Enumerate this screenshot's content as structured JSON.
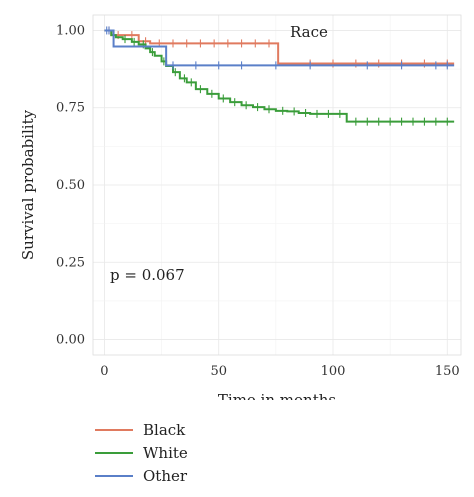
{
  "chart_data": {
    "type": "line",
    "title": "",
    "xlabel": "Time in months",
    "ylabel": "Survival probability",
    "xlim": [
      -5,
      156
    ],
    "ylim": [
      -0.05,
      1.05
    ],
    "x_ticks": [
      0,
      50,
      100,
      150
    ],
    "y_ticks": [
      0.0,
      0.25,
      0.5,
      0.75,
      1.0
    ],
    "y_tick_labels": [
      "0.00",
      "0.25",
      "0.50",
      "0.75",
      "1.00"
    ],
    "grid": true,
    "legend_title": "Race",
    "legend_position": "bottom",
    "annotation": "p = 0.067",
    "series": [
      {
        "name": "Black",
        "color": "#e07a5f",
        "x": [
          0,
          3,
          15,
          20,
          76,
          153
        ],
        "y": [
          1.0,
          0.985,
          0.965,
          0.958,
          0.893,
          0.893
        ],
        "censor_x": [
          2,
          6,
          12,
          18,
          24,
          30,
          36,
          42,
          48,
          54,
          60,
          66,
          72,
          90,
          100,
          110,
          120,
          130,
          140,
          150
        ]
      },
      {
        "name": "White",
        "color": "#3a9d3a",
        "x": [
          0,
          3,
          5,
          8,
          12,
          15,
          18,
          20,
          22,
          25,
          27,
          30,
          33,
          36,
          40,
          45,
          50,
          55,
          60,
          65,
          70,
          75,
          80,
          85,
          90,
          95,
          100,
          106,
          153
        ],
        "y": [
          1.0,
          0.985,
          0.978,
          0.972,
          0.963,
          0.955,
          0.942,
          0.93,
          0.918,
          0.9,
          0.885,
          0.865,
          0.845,
          0.832,
          0.81,
          0.795,
          0.78,
          0.768,
          0.758,
          0.752,
          0.745,
          0.74,
          0.738,
          0.733,
          0.73,
          0.73,
          0.73,
          0.705,
          0.705
        ],
        "censor_x": [
          4,
          9,
          13,
          17,
          21,
          26,
          31,
          35,
          38,
          42,
          47,
          52,
          57,
          62,
          67,
          72,
          78,
          83,
          88,
          93,
          98,
          103,
          110,
          115,
          120,
          125,
          130,
          135,
          140,
          145,
          150
        ]
      },
      {
        "name": "Other",
        "color": "#5a7fc8",
        "x": [
          0,
          4,
          27,
          153
        ],
        "y": [
          1.0,
          0.948,
          0.887,
          0.887
        ],
        "censor_x": [
          1,
          2,
          30,
          40,
          50,
          60,
          75,
          90,
          115,
          130,
          145,
          150
        ]
      }
    ]
  }
}
